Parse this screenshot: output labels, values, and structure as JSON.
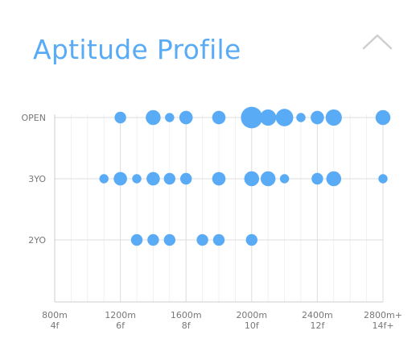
{
  "header": {
    "title": "Aptitude Profile",
    "collapse_icon": "chevron-up-icon"
  },
  "colors": {
    "title": "#5aabf5",
    "marker": "#5aabf5",
    "grid_major": "#dddddd",
    "grid_minor": "#f1f1f1",
    "label": "#777777"
  },
  "chart_data": {
    "type": "scatter",
    "title": "",
    "xlabel": "",
    "ylabel": "",
    "xlim": [
      800,
      2800
    ],
    "x_ticks": [
      {
        "value": 800,
        "line1": "800m",
        "line2": "4f"
      },
      {
        "value": 1200,
        "line1": "1200m",
        "line2": "6f"
      },
      {
        "value": 1600,
        "line1": "1600m",
        "line2": "8f"
      },
      {
        "value": 2000,
        "line1": "2000m",
        "line2": "10f"
      },
      {
        "value": 2400,
        "line1": "2400m",
        "line2": "12f"
      },
      {
        "value": 2800,
        "line1": "2800m+",
        "line2": "14f+"
      }
    ],
    "minor_step": 100,
    "categories": [
      "OPEN",
      "3YO",
      "2YO"
    ],
    "grid": true,
    "series": [
      {
        "category": "OPEN",
        "points": [
          {
            "x": 1200,
            "size": 1
          },
          {
            "x": 1400,
            "size": 2
          },
          {
            "x": 1500,
            "size": 0.5
          },
          {
            "x": 1600,
            "size": 1.5
          },
          {
            "x": 1800,
            "size": 1.5
          },
          {
            "x": 2000,
            "size": 5
          },
          {
            "x": 2100,
            "size": 2.5
          },
          {
            "x": 2200,
            "size": 3
          },
          {
            "x": 2300,
            "size": 0.5
          },
          {
            "x": 2400,
            "size": 1.5
          },
          {
            "x": 2500,
            "size": 2.5
          },
          {
            "x": 2800,
            "size": 2
          }
        ]
      },
      {
        "category": "3YO",
        "points": [
          {
            "x": 1100,
            "size": 0.5
          },
          {
            "x": 1200,
            "size": 1.5
          },
          {
            "x": 1300,
            "size": 0.5
          },
          {
            "x": 1400,
            "size": 1.5
          },
          {
            "x": 1500,
            "size": 1
          },
          {
            "x": 1600,
            "size": 1
          },
          {
            "x": 1800,
            "size": 1.5
          },
          {
            "x": 2000,
            "size": 2
          },
          {
            "x": 2100,
            "size": 2
          },
          {
            "x": 2200,
            "size": 0.5
          },
          {
            "x": 2400,
            "size": 1
          },
          {
            "x": 2500,
            "size": 2
          },
          {
            "x": 2800,
            "size": 0.5
          }
        ]
      },
      {
        "category": "2YO",
        "points": [
          {
            "x": 1300,
            "size": 1
          },
          {
            "x": 1400,
            "size": 1
          },
          {
            "x": 1500,
            "size": 1
          },
          {
            "x": 1700,
            "size": 1
          },
          {
            "x": 1800,
            "size": 1
          },
          {
            "x": 2000,
            "size": 1
          }
        ]
      }
    ]
  }
}
